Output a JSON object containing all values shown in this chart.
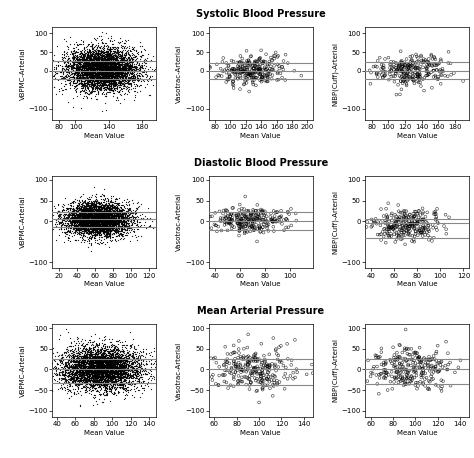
{
  "row_titles": [
    "Systolic Blood Pressure",
    "Diastolic Blood Pressure",
    "Mean Arterial Pressure"
  ],
  "xlabel": "Mean Value",
  "col_ylabels": [
    [
      "VBPMC-Arterial",
      "Vasotrac-Arterial",
      "NIBP(Cuff)-Arterial"
    ],
    [
      "VBPMC-Arterial",
      "Vasotrac-Arterial",
      "NIBP(Cuff)-Arterial"
    ],
    [
      "VBPMC-Arterial",
      "Vasotrac-Arterial",
      "NIBP(Cuff)-Arterial"
    ]
  ],
  "plots": [
    [
      {
        "xlim": [
          72,
          197
        ],
        "ylim": [
          -130,
          115
        ],
        "xticks": [
          80,
          100,
          140,
          180
        ],
        "yticks": [
          -100,
          0,
          50,
          100
        ],
        "hlines": [
          27,
          0,
          -22
        ],
        "n_points": 5000,
        "x_mean": 132,
        "x_std": 22,
        "y_mean": 5,
        "y_std": 28,
        "density": true
      },
      {
        "xlim": [
          72,
          207
        ],
        "ylim": [
          -130,
          115
        ],
        "xticks": [
          80,
          100,
          120,
          140,
          160,
          180,
          200
        ],
        "yticks": [
          -100,
          0,
          50,
          100
        ],
        "hlines": [
          22,
          0,
          -22
        ],
        "n_points": 280,
        "x_mean": 128,
        "x_std": 22,
        "y_mean": 2,
        "y_std": 20,
        "density": false
      },
      {
        "xlim": [
          72,
          197
        ],
        "ylim": [
          -130,
          115
        ],
        "xticks": [
          80,
          100,
          120,
          140,
          160,
          180
        ],
        "yticks": [
          -100,
          0,
          50,
          100
        ],
        "hlines": [
          25,
          0,
          -22
        ],
        "n_points": 280,
        "x_mean": 128,
        "x_std": 22,
        "y_mean": 3,
        "y_std": 22,
        "density": false
      }
    ],
    [
      {
        "xlim": [
          12,
          128
        ],
        "ylim": [
          -115,
          110
        ],
        "xticks": [
          20,
          40,
          60,
          80,
          100,
          120
        ],
        "yticks": [
          -100,
          0,
          50,
          100
        ],
        "hlines": [
          22,
          5,
          -15
        ],
        "n_points": 5000,
        "x_mean": 62,
        "x_std": 18,
        "y_mean": 5,
        "y_std": 20,
        "density": true
      },
      {
        "xlim": [
          35,
          118
        ],
        "ylim": [
          -115,
          110
        ],
        "xticks": [
          40,
          60,
          80,
          100
        ],
        "yticks": [
          -100,
          0,
          50,
          100
        ],
        "hlines": [
          22,
          0,
          -22
        ],
        "n_points": 280,
        "x_mean": 68,
        "x_std": 15,
        "y_mean": 2,
        "y_std": 16,
        "density": false
      },
      {
        "xlim": [
          35,
          125
        ],
        "ylim": [
          -115,
          110
        ],
        "xticks": [
          40,
          60,
          80,
          100,
          120
        ],
        "yticks": [
          -100,
          0,
          50,
          100
        ],
        "hlines": [
          5,
          -5,
          -42
        ],
        "n_points": 280,
        "x_mean": 70,
        "x_std": 15,
        "y_mean": -8,
        "y_std": 20,
        "density": false
      }
    ],
    [
      {
        "xlim": [
          35,
          148
        ],
        "ylim": [
          -115,
          110
        ],
        "xticks": [
          40,
          60,
          80,
          100,
          120,
          140
        ],
        "yticks": [
          -100,
          -50,
          0,
          50,
          100
        ],
        "hlines": [
          25,
          0,
          -32
        ],
        "n_points": 5000,
        "x_mean": 88,
        "x_std": 22,
        "y_mean": 3,
        "y_std": 26,
        "density": true
      },
      {
        "xlim": [
          55,
          148
        ],
        "ylim": [
          -115,
          110
        ],
        "xticks": [
          60,
          80,
          100,
          120,
          140
        ],
        "yticks": [
          -100,
          -50,
          0,
          50,
          100
        ],
        "hlines": [
          25,
          0,
          -38
        ],
        "n_points": 280,
        "x_mean": 95,
        "x_std": 18,
        "y_mean": 0,
        "y_std": 26,
        "density": false
      },
      {
        "xlim": [
          55,
          148
        ],
        "ylim": [
          -115,
          110
        ],
        "xticks": [
          60,
          80,
          100,
          120,
          140
        ],
        "yticks": [
          -100,
          -50,
          0,
          50,
          100
        ],
        "hlines": [
          25,
          0,
          -35
        ],
        "n_points": 280,
        "x_mean": 95,
        "x_std": 18,
        "y_mean": 0,
        "y_std": 26,
        "density": false
      }
    ]
  ],
  "hline_color": "#888888",
  "hline_lw": 0.8,
  "marker_color": "black",
  "bg_color": "white",
  "title_fontsize": 7,
  "label_fontsize": 5,
  "tick_fontsize": 5
}
